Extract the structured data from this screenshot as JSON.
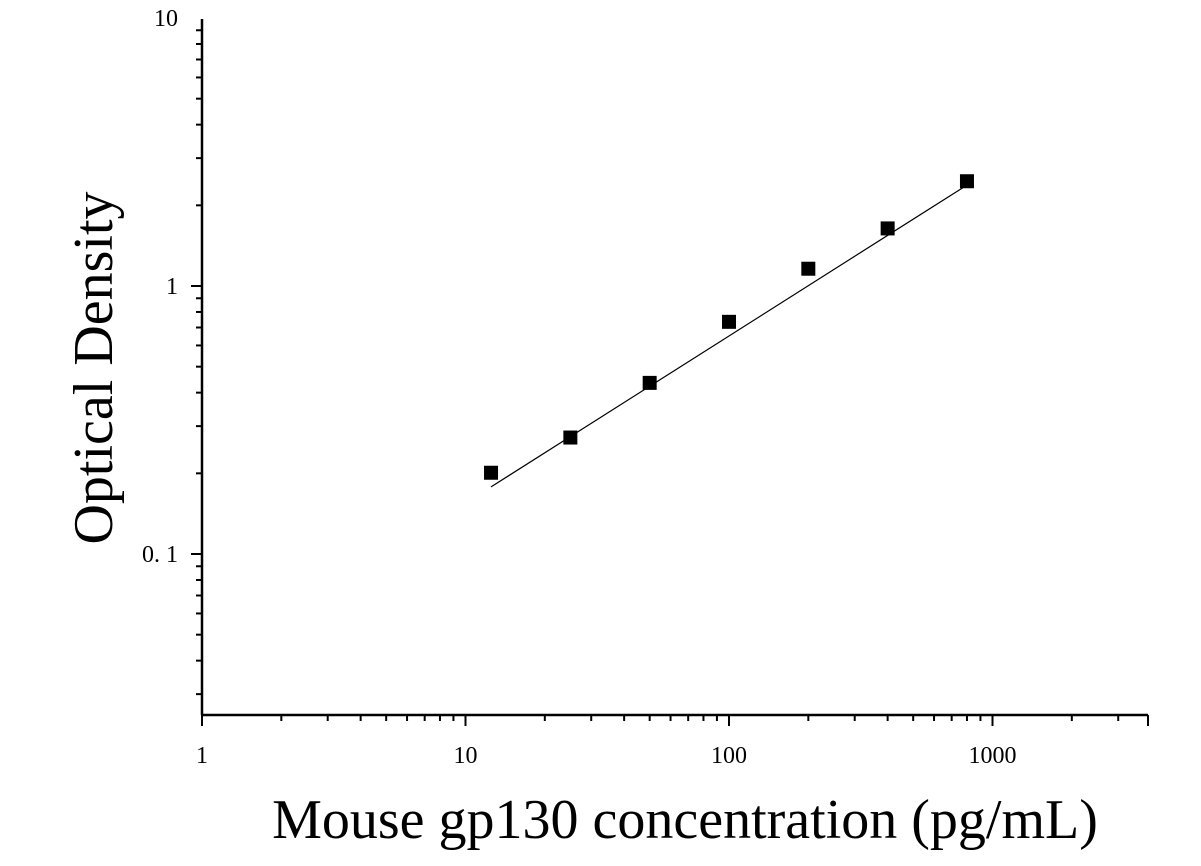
{
  "chart_data": {
    "type": "scatter",
    "title": "",
    "xlabel": "Mouse gp130 concentration (pg/mL)",
    "ylabel": "Optical Density",
    "xscale": "log",
    "yscale": "log",
    "xlim": [
      1,
      3600
    ],
    "ylim": [
      0.025,
      10
    ],
    "grid": false,
    "legend": "none",
    "x_tick_labels": [
      "1",
      "10",
      "100",
      "1000"
    ],
    "x_tick_values": [
      1,
      10,
      100,
      1000
    ],
    "y_tick_labels": [
      "0. 1",
      "1",
      "10"
    ],
    "y_tick_values": [
      0.1,
      1,
      10
    ],
    "series": [
      {
        "marker": "square",
        "color": "#000000",
        "x": [
          12.5,
          25,
          50,
          100,
          200,
          400,
          800
        ],
        "y": [
          0.201,
          0.272,
          0.435,
          0.735,
          1.16,
          1.64,
          2.46
        ]
      }
    ],
    "fit_line": {
      "type": "power",
      "color": "#000000",
      "x": [
        12.5,
        800
      ],
      "y": [
        0.178,
        2.38
      ]
    }
  }
}
